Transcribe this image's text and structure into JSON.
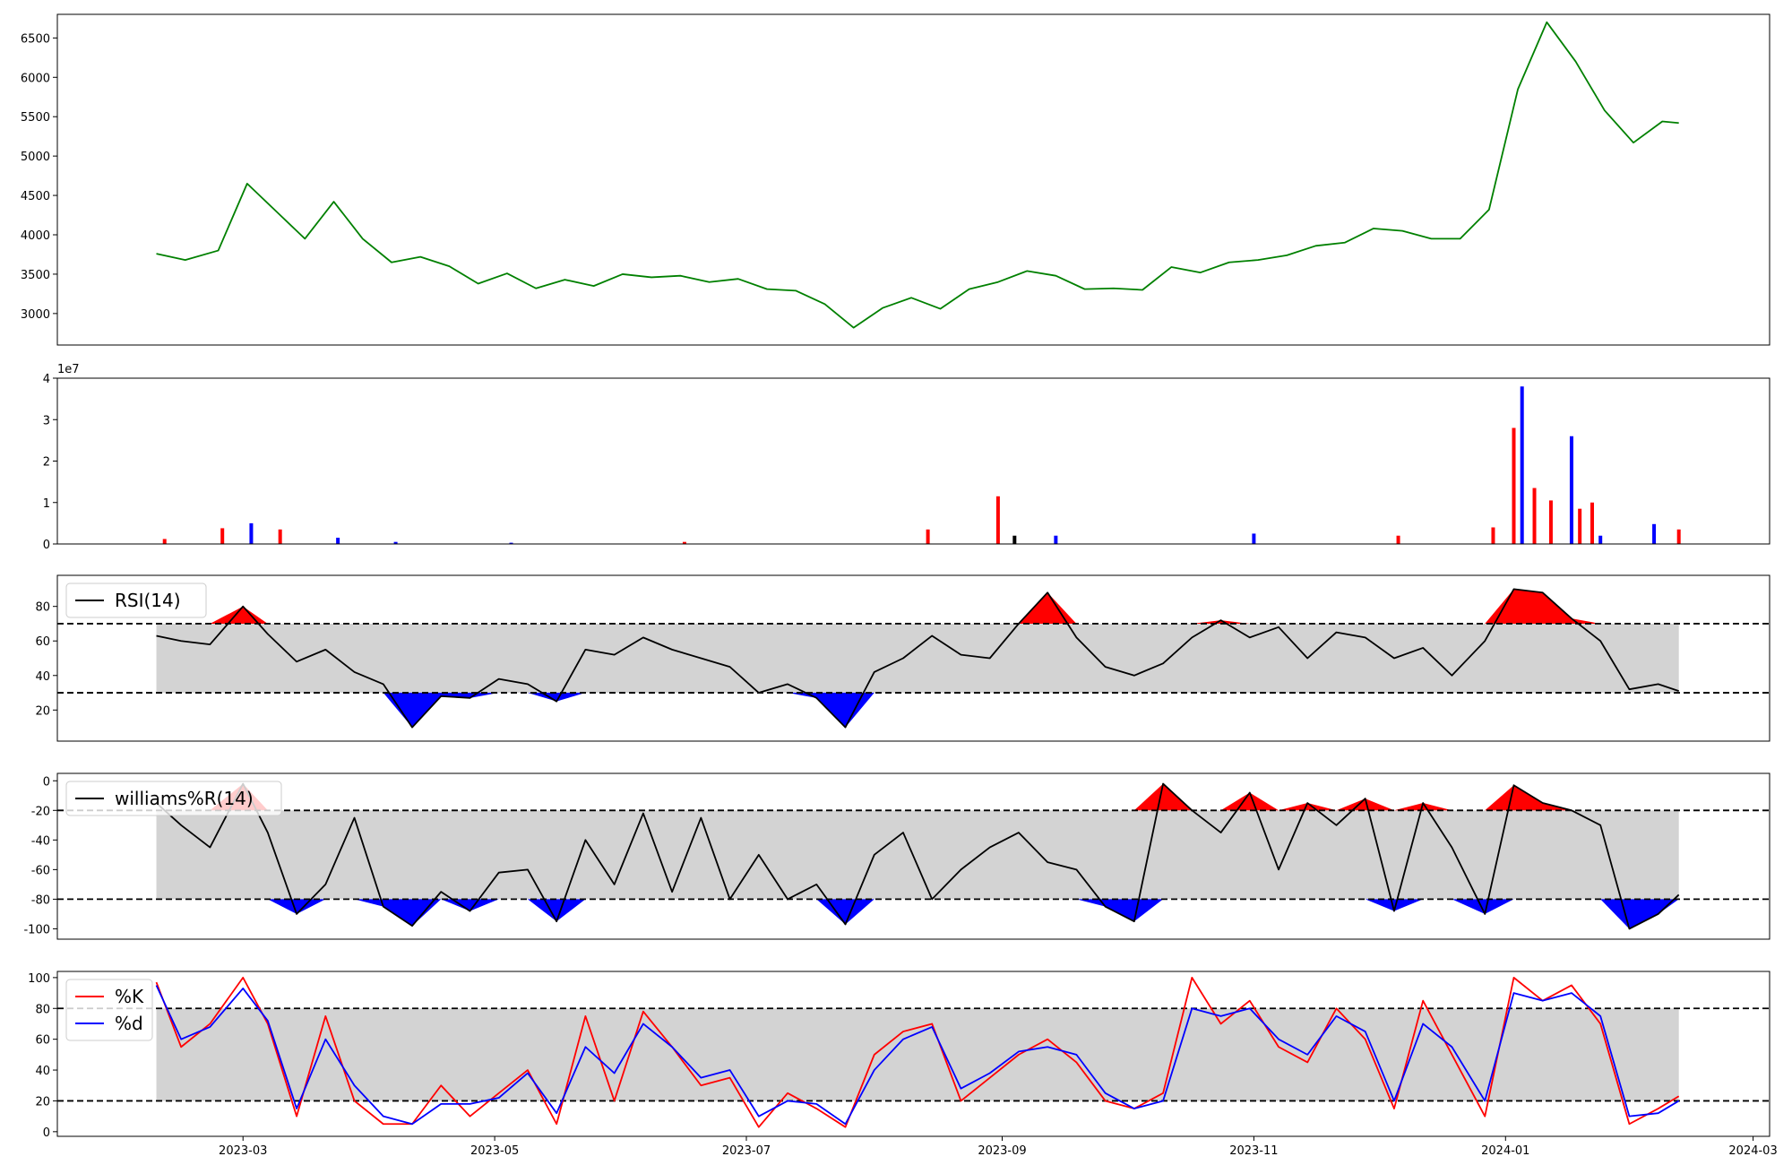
{
  "chart_data": [
    {
      "panel": "price",
      "type": "line",
      "x": [
        "2023-02-08",
        "2023-02-15",
        "2023-02-23",
        "2023-03-02",
        "2023-03-09",
        "2023-03-16",
        "2023-03-23",
        "2023-03-30",
        "2023-04-06",
        "2023-04-13",
        "2023-04-20",
        "2023-04-27",
        "2023-05-04",
        "2023-05-11",
        "2023-05-18",
        "2023-05-25",
        "2023-06-01",
        "2023-06-08",
        "2023-06-15",
        "2023-06-22",
        "2023-06-29",
        "2023-07-06",
        "2023-07-13",
        "2023-07-20",
        "2023-07-27",
        "2023-08-03",
        "2023-08-10",
        "2023-08-17",
        "2023-08-24",
        "2023-08-31",
        "2023-09-07",
        "2023-09-14",
        "2023-09-21",
        "2023-09-28",
        "2023-10-05",
        "2023-10-12",
        "2023-10-19",
        "2023-10-26",
        "2023-11-02",
        "2023-11-09",
        "2023-11-16",
        "2023-11-23",
        "2023-11-30",
        "2023-12-07",
        "2023-12-14",
        "2023-12-21",
        "2023-12-28",
        "2024-01-04",
        "2024-01-11",
        "2024-01-18",
        "2024-01-25",
        "2024-02-01",
        "2024-02-08",
        "2024-02-12"
      ],
      "series": [
        {
          "name": "",
          "color": "#008000",
          "values": [
            3760,
            3680,
            3800,
            4650,
            4300,
            3950,
            4420,
            3950,
            3650,
            3720,
            3600,
            3380,
            3510,
            3320,
            3430,
            3350,
            3500,
            3460,
            3480,
            3400,
            3440,
            3310,
            3290,
            3120,
            2820,
            3070,
            3200,
            3060,
            3310,
            3400,
            3540,
            3480,
            3310,
            3320,
            3300,
            3590,
            3520,
            3650,
            3680,
            3740,
            3860,
            3900,
            4080,
            4050,
            3950,
            3950,
            4320,
            5850,
            6700,
            6200,
            5580,
            5170,
            5440,
            5420
          ]
        }
      ],
      "ylim": [
        2600,
        6800
      ],
      "yticks": [
        "3000",
        "3500",
        "4000",
        "4500",
        "5000",
        "5500",
        "6000",
        "6500"
      ]
    },
    {
      "panel": "volume",
      "type": "bar",
      "x": [
        "2023-02-10",
        "2023-02-24",
        "2023-03-03",
        "2023-03-10",
        "2023-03-24",
        "2023-04-07",
        "2023-05-05",
        "2023-06-16",
        "2023-08-14",
        "2023-08-31",
        "2023-09-04",
        "2023-09-14",
        "2023-11-01",
        "2023-12-06",
        "2023-12-29",
        "2024-01-03",
        "2024-01-05",
        "2024-01-08",
        "2024-01-12",
        "2024-01-17",
        "2024-01-19",
        "2024-01-22",
        "2024-01-24",
        "2024-02-06",
        "2024-02-12"
      ],
      "values": [
        1.2,
        3.8,
        5.0,
        3.5,
        1.5,
        0.5,
        0.3,
        0.5,
        3.5,
        11.5,
        2.0,
        2.0,
        2.5,
        2.0,
        4.0,
        28.0,
        38.0,
        13.5,
        10.5,
        26.0,
        8.5,
        10.0,
        2.0,
        4.8,
        3.5
      ],
      "colors": [
        "#ff0000",
        "#ff0000",
        "#0000ff",
        "#ff0000",
        "#0000ff",
        "#0000ff",
        "#0000ff",
        "#ff0000",
        "#ff0000",
        "#ff0000",
        "#000000",
        "#0000ff",
        "#0000ff",
        "#ff0000",
        "#ff0000",
        "#ff0000",
        "#0000ff",
        "#ff0000",
        "#ff0000",
        "#0000ff",
        "#ff0000",
        "#ff0000",
        "#0000ff",
        "#0000ff",
        "#ff0000"
      ],
      "ylim": [
        0,
        40
      ],
      "yticks": [
        "0",
        "1",
        "2",
        "3",
        "4"
      ],
      "offset_label": "1e7"
    },
    {
      "panel": "rsi",
      "type": "line",
      "x": [
        "2023-02-08",
        "2023-02-14",
        "2023-02-21",
        "2023-03-01",
        "2023-03-07",
        "2023-03-14",
        "2023-03-21",
        "2023-03-28",
        "2023-04-04",
        "2023-04-11",
        "2023-04-18",
        "2023-04-25",
        "2023-05-02",
        "2023-05-09",
        "2023-05-16",
        "2023-05-23",
        "2023-05-30",
        "2023-06-06",
        "2023-06-13",
        "2023-06-20",
        "2023-06-27",
        "2023-07-04",
        "2023-07-11",
        "2023-07-18",
        "2023-07-25",
        "2023-08-01",
        "2023-08-08",
        "2023-08-15",
        "2023-08-22",
        "2023-08-29",
        "2023-09-05",
        "2023-09-12",
        "2023-09-19",
        "2023-09-26",
        "2023-10-03",
        "2023-10-10",
        "2023-10-17",
        "2023-10-24",
        "2023-10-31",
        "2023-11-07",
        "2023-11-14",
        "2023-11-21",
        "2023-11-28",
        "2023-12-05",
        "2023-12-12",
        "2023-12-19",
        "2023-12-27",
        "2024-01-03",
        "2024-01-10",
        "2024-01-17",
        "2024-01-24",
        "2024-01-31",
        "2024-02-07",
        "2024-02-12"
      ],
      "series": [
        {
          "name": "RSI(14)",
          "color": "#000000",
          "values": [
            63,
            60,
            58,
            80,
            64,
            48,
            55,
            42,
            35,
            10,
            28,
            27,
            38,
            35,
            25,
            55,
            52,
            62,
            55,
            50,
            45,
            30,
            35,
            27,
            10,
            42,
            50,
            63,
            52,
            50,
            70,
            88,
            62,
            45,
            40,
            47,
            62,
            72,
            62,
            68,
            50,
            65,
            62,
            50,
            56,
            40,
            60,
            90,
            88,
            73,
            60,
            32,
            35,
            31
          ]
        }
      ],
      "ylim": [
        2,
        98
      ],
      "yticks": [
        "20",
        "40",
        "60",
        "80"
      ],
      "upper": 70,
      "lower": 30
    },
    {
      "panel": "williams",
      "type": "line",
      "x": [
        "2023-02-08",
        "2023-02-14",
        "2023-02-21",
        "2023-03-01",
        "2023-03-07",
        "2023-03-14",
        "2023-03-21",
        "2023-03-28",
        "2023-04-04",
        "2023-04-11",
        "2023-04-18",
        "2023-04-25",
        "2023-05-02",
        "2023-05-09",
        "2023-05-16",
        "2023-05-23",
        "2023-05-30",
        "2023-06-06",
        "2023-06-13",
        "2023-06-20",
        "2023-06-27",
        "2023-07-04",
        "2023-07-11",
        "2023-07-18",
        "2023-07-25",
        "2023-08-01",
        "2023-08-08",
        "2023-08-15",
        "2023-08-22",
        "2023-08-29",
        "2023-09-05",
        "2023-09-12",
        "2023-09-19",
        "2023-09-26",
        "2023-10-03",
        "2023-10-10",
        "2023-10-17",
        "2023-10-24",
        "2023-10-31",
        "2023-11-07",
        "2023-11-14",
        "2023-11-21",
        "2023-11-28",
        "2023-12-05",
        "2023-12-12",
        "2023-12-19",
        "2023-12-27",
        "2024-01-03",
        "2024-01-10",
        "2024-01-17",
        "2024-01-24",
        "2024-01-31",
        "2024-02-07",
        "2024-02-12"
      ],
      "series": [
        {
          "name": "williams%R(14)",
          "color": "#000000",
          "values": [
            -15,
            -30,
            -45,
            -2,
            -35,
            -90,
            -70,
            -25,
            -85,
            -98,
            -75,
            -88,
            -62,
            -60,
            -95,
            -40,
            -70,
            -22,
            -75,
            -25,
            -80,
            -50,
            -80,
            -70,
            -97,
            -50,
            -35,
            -80,
            -60,
            -45,
            -35,
            -55,
            -60,
            -85,
            -95,
            -2,
            -20,
            -35,
            -8,
            -60,
            -15,
            -30,
            -12,
            -88,
            -15,
            -45,
            -90,
            -3,
            -15,
            -20,
            -30,
            -100,
            -90,
            -77
          ]
        }
      ],
      "ylim": [
        -107,
        5
      ],
      "yticks": [
        "-100",
        "-80",
        "-60",
        "-40",
        "-20",
        "0"
      ],
      "upper": -20,
      "lower": -80
    },
    {
      "panel": "stochastic",
      "type": "line",
      "x": [
        "2023-02-08",
        "2023-02-14",
        "2023-02-21",
        "2023-03-01",
        "2023-03-07",
        "2023-03-14",
        "2023-03-21",
        "2023-03-28",
        "2023-04-04",
        "2023-04-11",
        "2023-04-18",
        "2023-04-25",
        "2023-05-02",
        "2023-05-09",
        "2023-05-16",
        "2023-05-23",
        "2023-05-30",
        "2023-06-06",
        "2023-06-13",
        "2023-06-20",
        "2023-06-27",
        "2023-07-04",
        "2023-07-11",
        "2023-07-18",
        "2023-07-25",
        "2023-08-01",
        "2023-08-08",
        "2023-08-15",
        "2023-08-22",
        "2023-08-29",
        "2023-09-05",
        "2023-09-12",
        "2023-09-19",
        "2023-09-26",
        "2023-10-03",
        "2023-10-10",
        "2023-10-17",
        "2023-10-24",
        "2023-10-31",
        "2023-11-07",
        "2023-11-14",
        "2023-11-21",
        "2023-11-28",
        "2023-12-05",
        "2023-12-12",
        "2023-12-19",
        "2023-12-27",
        "2024-01-03",
        "2024-01-10",
        "2024-01-17",
        "2024-01-24",
        "2024-01-31",
        "2024-02-07",
        "2024-02-12"
      ],
      "series": [
        {
          "name": "%K",
          "color": "#ff0000",
          "values": [
            97,
            55,
            70,
            100,
            70,
            10,
            75,
            20,
            5,
            5,
            30,
            10,
            25,
            40,
            5,
            75,
            20,
            78,
            55,
            30,
            35,
            3,
            25,
            15,
            3,
            50,
            65,
            70,
            20,
            35,
            50,
            60,
            45,
            20,
            15,
            25,
            100,
            70,
            85,
            55,
            45,
            80,
            60,
            15,
            85,
            50,
            10,
            100,
            85,
            95,
            70,
            5,
            15,
            23
          ]
        },
        {
          "name": "%d",
          "color": "#0000ff",
          "values": [
            95,
            60,
            68,
            93,
            72,
            15,
            60,
            30,
            10,
            5,
            18,
            18,
            22,
            38,
            12,
            55,
            38,
            70,
            55,
            35,
            40,
            10,
            20,
            18,
            5,
            40,
            60,
            68,
            28,
            38,
            52,
            55,
            50,
            25,
            15,
            20,
            80,
            75,
            80,
            60,
            50,
            75,
            65,
            20,
            70,
            55,
            20,
            90,
            85,
            90,
            75,
            10,
            12,
            20
          ]
        }
      ],
      "ylim": [
        -3,
        104
      ],
      "yticks": [
        "0",
        "20",
        "40",
        "60",
        "80",
        "100"
      ],
      "upper": 80,
      "lower": 20
    }
  ],
  "xaxis": {
    "range": [
      "2023-01-15",
      "2024-03-05"
    ],
    "ticks": [
      {
        "date": "2023-03-01",
        "label": "2023-03"
      },
      {
        "date": "2023-05-01",
        "label": "2023-05"
      },
      {
        "date": "2023-07-01",
        "label": "2023-07"
      },
      {
        "date": "2023-09-01",
        "label": "2023-09"
      },
      {
        "date": "2023-11-01",
        "label": "2023-11"
      },
      {
        "date": "2024-01-01",
        "label": "2024-01"
      },
      {
        "date": "2024-03-01",
        "label": "2024-03"
      }
    ]
  },
  "colors": {
    "price_line": "#008000",
    "band_fill": "#d3d3d3",
    "overbought_fill": "#ff0000",
    "oversold_fill": "#0000ff",
    "threshold_line": "#000000"
  }
}
